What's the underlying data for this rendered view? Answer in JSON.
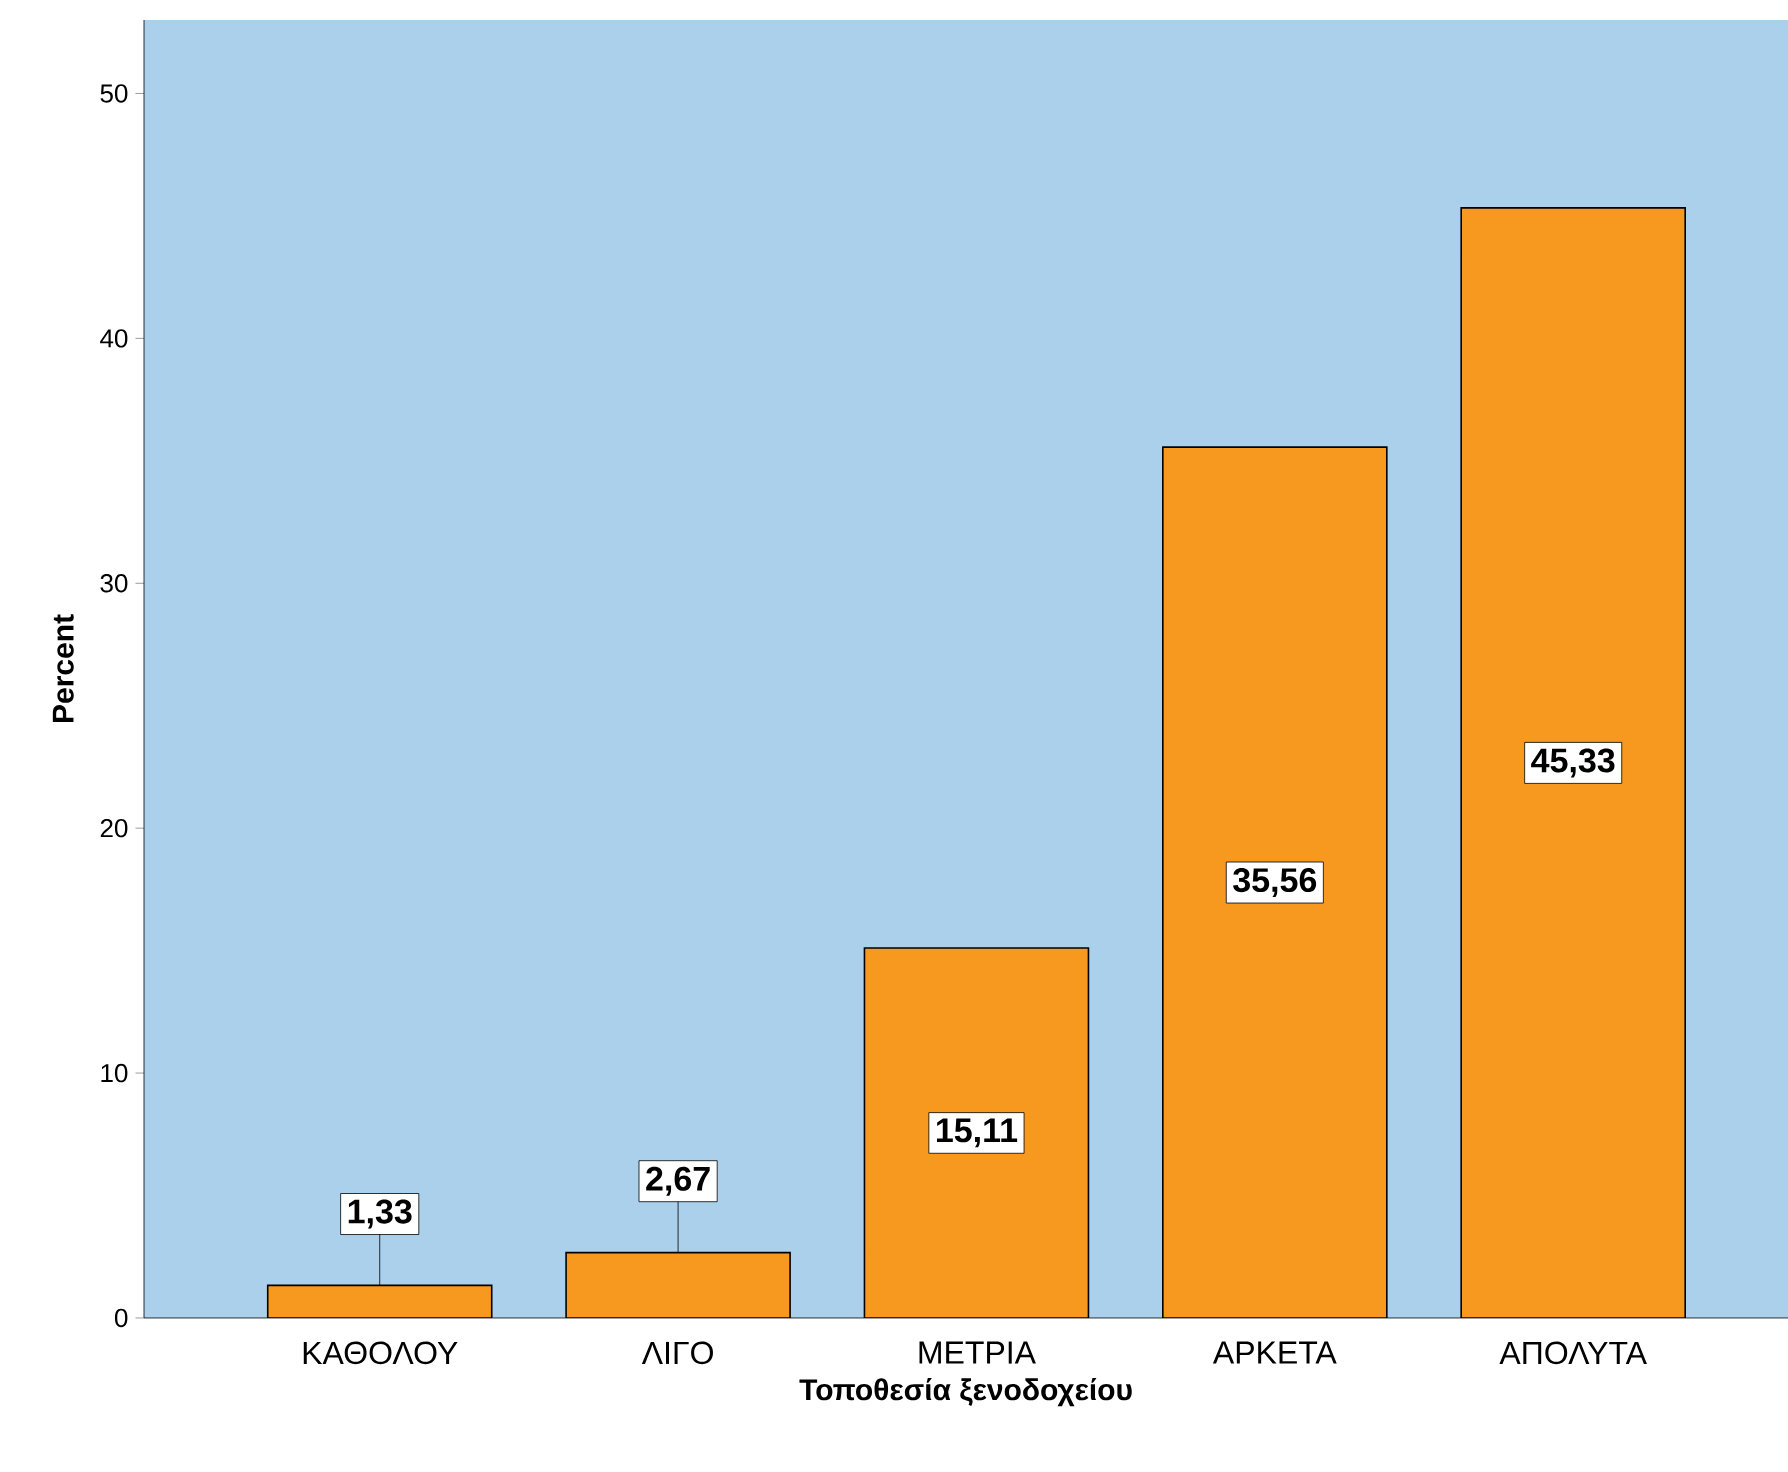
{
  "chart_data": {
    "type": "bar",
    "xlabel": "Τοποθεσία ξενοδοχείου",
    "ylabel": "Percent",
    "categories": [
      "ΚΑΘΟΛΟΥ",
      "ΛΙΓΟ",
      "ΜΕΤΡΙΑ",
      "ΑΡΚΕΤΑ",
      "ΑΠΟΛΥΤΑ"
    ],
    "values": [
      1.33,
      2.67,
      15.11,
      35.56,
      45.33
    ],
    "value_labels": [
      "1,33",
      "2,67",
      "15,11",
      "35,56",
      "45,33"
    ],
    "color": "#f7981f",
    "ylim": [
      0,
      53
    ],
    "yticks": [
      0,
      10,
      20,
      30,
      40,
      50
    ],
    "grid": false
  }
}
